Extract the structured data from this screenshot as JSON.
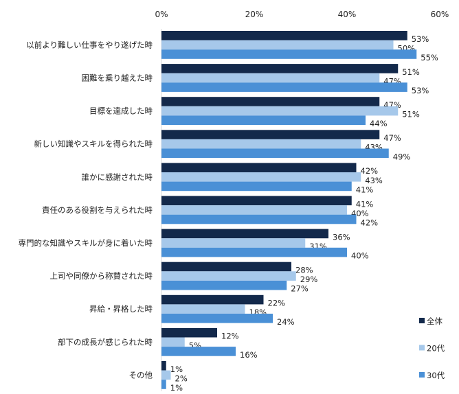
{
  "chart_data": {
    "type": "bar",
    "orientation": "horizontal",
    "categories": [
      "以前より難しい仕事をやり遂げた時",
      "困難を乗り越えた時",
      "目標を達成した時",
      "新しい知識やスキルを得られた時",
      "誰かに感謝された時",
      "責任のある役割を与えられた時",
      "専門的な知識やスキルが身に着いた時",
      "上司や同僚から称賛された時",
      "昇給・昇格した時",
      "部下の成長が感じられた時",
      "その他"
    ],
    "series": [
      {
        "name": "全体",
        "color": "#13294b",
        "values": [
          53,
          51,
          47,
          47,
          42,
          41,
          36,
          28,
          22,
          12,
          1
        ]
      },
      {
        "name": "20代",
        "color": "#a6c8ea",
        "values": [
          50,
          47,
          51,
          43,
          43,
          40,
          31,
          29,
          18,
          5,
          2
        ]
      },
      {
        "name": "30代",
        "color": "#4a90d6",
        "values": [
          55,
          53,
          44,
          49,
          41,
          42,
          40,
          27,
          24,
          16,
          1
        ]
      }
    ],
    "xlim": [
      0,
      60
    ],
    "xticks": [
      "0%",
      "20%",
      "40%",
      "60%"
    ],
    "tick_values": [
      0,
      20,
      40,
      60
    ],
    "value_suffix": "%",
    "grid": false,
    "legend_position": "bottom-right"
  }
}
